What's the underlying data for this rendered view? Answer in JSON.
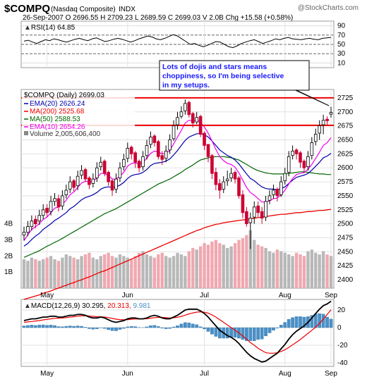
{
  "header": {
    "symbol": "$COMPQ",
    "name": "(Nasdaq Composite)",
    "exchange": "INDX",
    "watermark": "@StockCharts.com",
    "quote_line": "26-Sep-2007  O 2696.55  H 2709.23  L 2689.59  C 2699.03  V 2.0B  Chg +15.58 (+0.58%)"
  },
  "rsi": {
    "label": "RSI(14) 64.85",
    "ticks": [
      "90",
      "70",
      "50",
      "30",
      "10"
    ],
    "tick_values": [
      90,
      70,
      50,
      30,
      10
    ],
    "values": [
      57,
      59,
      55,
      52,
      56,
      60,
      58,
      62,
      60,
      57,
      55,
      58,
      61,
      63,
      60,
      58,
      62,
      64,
      60,
      56,
      58,
      61,
      63,
      61,
      58,
      55,
      58,
      62,
      65,
      68,
      66,
      62,
      60,
      63,
      67,
      71,
      68,
      62,
      56,
      50,
      52,
      48,
      45,
      48,
      52,
      56,
      55,
      50,
      45,
      43,
      47,
      52,
      55,
      58,
      60,
      56,
      52,
      55,
      58,
      62,
      60,
      63,
      65,
      62,
      61,
      60,
      62,
      63,
      61,
      60,
      63,
      64,
      65
    ],
    "color": "#000000"
  },
  "annotation": {
    "text_lines": [
      "Lots of dojis and stars means",
      "choppiness, so I'm being selective",
      "in my setups."
    ],
    "text_color": "#1a1aff",
    "border_color": "#000000"
  },
  "price": {
    "legend_title": "$COMPQ (Daily) 2699.03",
    "legend": [
      {
        "text": "EMA(20) 2626.24",
        "color": "#0000aa"
      },
      {
        "text": "MA(200) 2525.68",
        "color": "#ee0000"
      },
      {
        "text": "MA(50) 2588.53",
        "color": "#006600"
      },
      {
        "text": "EMA(10) 2654.26",
        "color": "#ee00ee"
      },
      {
        "text": "Volume 2,005,606,400",
        "color": "#666666"
      }
    ],
    "ticks": [
      "2725",
      "2700",
      "2675",
      "2650",
      "2625",
      "2600",
      "2575",
      "2550",
      "2525",
      "2500",
      "2475",
      "2450",
      "2425",
      "2400"
    ],
    "tick_values": [
      2725,
      2700,
      2675,
      2650,
      2625,
      2600,
      2575,
      2550,
      2525,
      2500,
      2475,
      2450,
      2425,
      2400
    ],
    "ylim": [
      2385,
      2740
    ],
    "resistance_levels": [
      2725,
      2676
    ],
    "resistance_color": "#ee0000",
    "closes": [
      2485,
      2495,
      2505,
      2500,
      2515,
      2525,
      2520,
      2540,
      2545,
      2530,
      2550,
      2560,
      2575,
      2565,
      2585,
      2595,
      2580,
      2570,
      2580,
      2600,
      2610,
      2590,
      2575,
      2560,
      2580,
      2600,
      2615,
      2635,
      2625,
      2610,
      2600,
      2620,
      2640,
      2655,
      2645,
      2620,
      2615,
      2630,
      2650,
      2675,
      2690,
      2700,
      2715,
      2695,
      2680,
      2690,
      2660,
      2640,
      2620,
      2590,
      2570,
      2560,
      2575,
      2580,
      2590,
      2580,
      2550,
      2520,
      2500,
      2510,
      2530,
      2520,
      2510,
      2540,
      2550,
      2560,
      2550,
      2575,
      2590,
      2620,
      2630,
      2625,
      2610,
      2600,
      2620,
      2645,
      2660,
      2675,
      2685,
      2684,
      2699
    ],
    "opens": [
      2480,
      2485,
      2495,
      2508,
      2505,
      2515,
      2528,
      2522,
      2540,
      2545,
      2532,
      2552,
      2562,
      2577,
      2568,
      2587,
      2597,
      2582,
      2572,
      2582,
      2602,
      2612,
      2592,
      2577,
      2562,
      2582,
      2602,
      2617,
      2637,
      2627,
      2612,
      2602,
      2622,
      2642,
      2657,
      2647,
      2622,
      2617,
      2632,
      2652,
      2677,
      2692,
      2702,
      2717,
      2697,
      2682,
      2692,
      2662,
      2642,
      2622,
      2592,
      2572,
      2562,
      2577,
      2582,
      2592,
      2582,
      2552,
      2522,
      2502,
      2512,
      2532,
      2522,
      2512,
      2542,
      2552,
      2562,
      2552,
      2577,
      2592,
      2622,
      2632,
      2627,
      2612,
      2602,
      2622,
      2647,
      2662,
      2677,
      2687,
      2696
    ],
    "highs": [
      2495,
      2505,
      2515,
      2515,
      2525,
      2535,
      2535,
      2550,
      2555,
      2552,
      2560,
      2570,
      2585,
      2580,
      2595,
      2605,
      2600,
      2585,
      2590,
      2610,
      2620,
      2615,
      2595,
      2580,
      2590,
      2610,
      2625,
      2645,
      2640,
      2630,
      2615,
      2630,
      2650,
      2665,
      2660,
      2650,
      2630,
      2640,
      2660,
      2685,
      2700,
      2710,
      2722,
      2720,
      2700,
      2700,
      2695,
      2665,
      2640,
      2625,
      2600,
      2580,
      2585,
      2595,
      2600,
      2595,
      2585,
      2560,
      2530,
      2520,
      2540,
      2540,
      2530,
      2550,
      2560,
      2570,
      2565,
      2585,
      2600,
      2630,
      2640,
      2635,
      2630,
      2615,
      2630,
      2655,
      2670,
      2685,
      2695,
      2692,
      2709
    ],
    "lows": [
      2470,
      2478,
      2488,
      2492,
      2498,
      2508,
      2512,
      2515,
      2532,
      2522,
      2525,
      2545,
      2555,
      2558,
      2560,
      2580,
      2575,
      2562,
      2565,
      2575,
      2595,
      2585,
      2568,
      2550,
      2555,
      2575,
      2595,
      2610,
      2615,
      2600,
      2592,
      2595,
      2615,
      2635,
      2638,
      2615,
      2605,
      2610,
      2625,
      2648,
      2668,
      2688,
      2695,
      2690,
      2672,
      2678,
      2655,
      2632,
      2610,
      2580,
      2560,
      2545,
      2555,
      2568,
      2575,
      2572,
      2545,
      2510,
      2495,
      2455,
      2500,
      2512,
      2500,
      2505,
      2535,
      2545,
      2540,
      2548,
      2570,
      2585,
      2615,
      2615,
      2600,
      2590,
      2595,
      2615,
      2640,
      2650,
      2660,
      2676,
      2690
    ],
    "ema10": [
      2470,
      2480,
      2490,
      2495,
      2500,
      2508,
      2512,
      2520,
      2528,
      2530,
      2535,
      2542,
      2552,
      2557,
      2565,
      2573,
      2576,
      2575,
      2576,
      2582,
      2590,
      2590,
      2586,
      2580,
      2580,
      2585,
      2592,
      2603,
      2608,
      2609,
      2607,
      2610,
      2617,
      2626,
      2630,
      2628,
      2625,
      2626,
      2631,
      2643,
      2655,
      2667,
      2680,
      2685,
      2684,
      2686,
      2681,
      2673,
      2662,
      2648,
      2633,
      2620,
      2613,
      2608,
      2606,
      2601,
      2591,
      2578,
      2565,
      2556,
      2551,
      2545,
      2539,
      2539,
      2541,
      2545,
      2546,
      2552,
      2560,
      2571,
      2581,
      2588,
      2590,
      2592,
      2597,
      2606,
      2617,
      2628,
      2640,
      2645,
      2654
    ],
    "ema20": [
      2460,
      2465,
      2472,
      2478,
      2483,
      2490,
      2495,
      2500,
      2506,
      2510,
      2515,
      2520,
      2527,
      2531,
      2537,
      2543,
      2547,
      2549,
      2552,
      2556,
      2562,
      2565,
      2566,
      2565,
      2566,
      2569,
      2574,
      2581,
      2586,
      2588,
      2589,
      2592,
      2597,
      2604,
      2608,
      2609,
      2610,
      2612,
      2616,
      2623,
      2631,
      2640,
      2649,
      2655,
      2658,
      2661,
      2661,
      2659,
      2655,
      2648,
      2640,
      2632,
      2627,
      2622,
      2619,
      2614,
      2607,
      2598,
      2589,
      2581,
      2577,
      2571,
      2566,
      2563,
      2562,
      2562,
      2561,
      2563,
      2566,
      2572,
      2578,
      2583,
      2585,
      2587,
      2590,
      2596,
      2603,
      2610,
      2618,
      2621,
      2626
    ],
    "ma50": [
      2440,
      2443,
      2446,
      2449,
      2452,
      2456,
      2460,
      2463,
      2467,
      2470,
      2474,
      2478,
      2482,
      2486,
      2490,
      2494,
      2498,
      2502,
      2506,
      2510,
      2514,
      2518,
      2521,
      2524,
      2527,
      2531,
      2535,
      2539,
      2543,
      2547,
      2551,
      2555,
      2559,
      2563,
      2567,
      2571,
      2574,
      2577,
      2580,
      2584,
      2588,
      2592,
      2597,
      2601,
      2605,
      2610,
      2614,
      2616,
      2618,
      2619,
      2620,
      2620,
      2620,
      2619,
      2618,
      2616,
      2614,
      2610,
      2606,
      2602,
      2598,
      2595,
      2593,
      2591,
      2590,
      2589,
      2589,
      2589,
      2589,
      2590,
      2591,
      2592,
      2593,
      2593,
      2592,
      2591,
      2590,
      2589,
      2589,
      2588,
      2588
    ],
    "ma200": [
      2365,
      2367,
      2369,
      2371,
      2373,
      2376,
      2378,
      2380,
      2383,
      2385,
      2388,
      2390,
      2393,
      2395,
      2398,
      2400,
      2403,
      2405,
      2408,
      2411,
      2414,
      2416,
      2419,
      2422,
      2425,
      2428,
      2431,
      2434,
      2437,
      2440,
      2443,
      2446,
      2449,
      2452,
      2455,
      2458,
      2461,
      2464,
      2467,
      2470,
      2473,
      2476,
      2479,
      2482,
      2485,
      2488,
      2490,
      2493,
      2495,
      2497,
      2499,
      2500,
      2502,
      2503,
      2504,
      2505,
      2506,
      2507,
      2508,
      2509,
      2510,
      2511,
      2512,
      2513,
      2514,
      2515,
      2516,
      2517,
      2517,
      2518,
      2519,
      2520,
      2520,
      2521,
      2522,
      2522,
      2523,
      2524,
      2524,
      2525,
      2526
    ],
    "volume_ticks": [
      "4B",
      "3B",
      "2B",
      "1B"
    ],
    "volume_tick_values": [
      4,
      3,
      2,
      1
    ],
    "volumes": [
      1.8,
      1.7,
      1.9,
      1.8,
      1.7,
      1.8,
      1.9,
      2.0,
      1.8,
      1.7,
      1.9,
      2.1,
      2.0,
      1.9,
      1.8,
      2.0,
      2.1,
      2.2,
      1.9,
      1.8,
      2.0,
      2.1,
      2.2,
      2.0,
      1.9,
      2.1,
      2.0,
      1.9,
      1.8,
      2.0,
      2.2,
      2.3,
      2.1,
      2.0,
      1.9,
      2.1,
      2.2,
      2.0,
      1.9,
      2.0,
      2.2,
      2.1,
      2.0,
      2.3,
      2.5,
      2.4,
      2.6,
      2.8,
      2.7,
      2.9,
      3.0,
      2.8,
      2.7,
      2.5,
      2.6,
      2.8,
      3.0,
      3.1,
      3.3,
      3.6,
      3.0,
      2.7,
      2.6,
      2.5,
      2.3,
      2.2,
      2.4,
      2.3,
      2.2,
      2.1,
      2.0,
      2.2,
      2.1,
      2.0,
      2.3,
      2.4,
      2.2,
      2.1,
      2.3,
      2.1,
      2.0
    ]
  },
  "macd": {
    "label": "MACD(12,26,9) 30.295, 20.313, 9.981",
    "label_parts": [
      "MACD(12,26,9) 30.295, ",
      "20.313, ",
      "9.981"
    ],
    "ticks": [
      "20",
      "0",
      "-20",
      "-40"
    ],
    "tick_values": [
      20,
      0,
      -20,
      -40
    ],
    "ylim": [
      -44,
      32
    ],
    "macd": [
      8,
      9,
      10,
      10,
      11,
      12,
      12,
      13,
      13,
      12,
      12,
      13,
      14,
      14,
      15,
      15,
      14,
      12,
      11,
      11,
      12,
      11,
      9,
      7,
      6,
      7,
      8,
      10,
      11,
      11,
      10,
      10,
      11,
      13,
      14,
      13,
      11,
      10,
      10,
      12,
      14,
      17,
      20,
      21,
      21,
      21,
      19,
      16,
      12,
      7,
      2,
      -3,
      -6,
      -9,
      -11,
      -14,
      -18,
      -23,
      -28,
      -32,
      -35,
      -37,
      -39,
      -38,
      -35,
      -32,
      -29,
      -24,
      -19,
      -13,
      -8,
      -4,
      -1,
      2,
      6,
      11,
      16,
      21,
      25,
      27,
      30
    ],
    "signal": [
      6,
      6.5,
      7,
      7.5,
      8,
      8.8,
      9.4,
      10,
      10.6,
      10.8,
      11,
      11.4,
      12,
      12.4,
      13,
      13.4,
      13.5,
      13.2,
      12.8,
      12.4,
      12.3,
      12,
      11.4,
      10.5,
      9.6,
      9.1,
      8.9,
      9.1,
      9.5,
      9.8,
      9.8,
      9.9,
      10.1,
      10.7,
      11.4,
      11.7,
      11.6,
      11.3,
      11,
      11.2,
      11.8,
      12.8,
      14.2,
      15.6,
      16.7,
      17.6,
      17.9,
      17.5,
      16.4,
      14.5,
      12,
      9,
      6,
      3,
      0,
      -3,
      -6,
      -9.5,
      -13,
      -17,
      -20,
      -23.5,
      -26,
      -28.5,
      -29,
      -29,
      -28.5,
      -27,
      -25,
      -22.5,
      -19.5,
      -16.5,
      -13.5,
      -10,
      -6.5,
      -3,
      0.5,
      5,
      9.5,
      15,
      20.3
    ],
    "macd_color": "#000000",
    "signal_color": "#ee0000",
    "hist_color": "#4a90c8"
  },
  "x_axis": {
    "labels": [
      "May",
      "Jun",
      "Jul",
      "Aug",
      "Sep"
    ],
    "label_index": [
      6,
      27,
      47,
      68,
      80
    ]
  }
}
